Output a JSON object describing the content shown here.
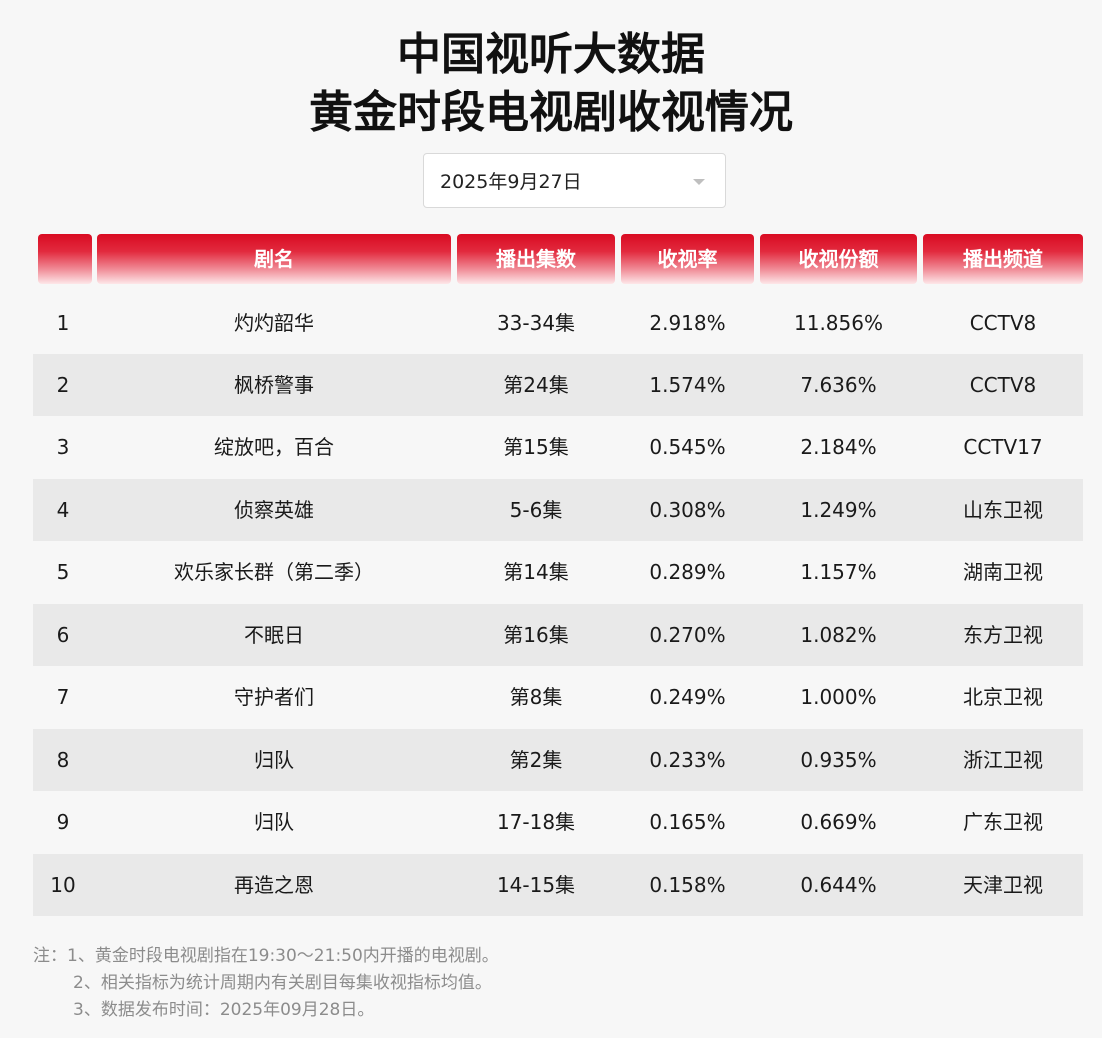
{
  "title": {
    "line1": "中国视听大数据",
    "line2": "黄金时段电视剧收视情况"
  },
  "date_selector": {
    "value": "2025年9月27日"
  },
  "table": {
    "headers": [
      "",
      "剧名",
      "播出集数",
      "收视率",
      "收视份额",
      "播出频道"
    ],
    "rows": [
      {
        "rank": "1",
        "name": "灼灼韶华",
        "episodes": "33-34集",
        "rating": "2.918%",
        "share": "11.856%",
        "channel": "CCTV8"
      },
      {
        "rank": "2",
        "name": "枫桥警事",
        "episodes": "第24集",
        "rating": "1.574%",
        "share": "7.636%",
        "channel": "CCTV8"
      },
      {
        "rank": "3",
        "name": "绽放吧，百合",
        "episodes": "第15集",
        "rating": "0.545%",
        "share": "2.184%",
        "channel": "CCTV17"
      },
      {
        "rank": "4",
        "name": "侦察英雄",
        "episodes": "5-6集",
        "rating": "0.308%",
        "share": "1.249%",
        "channel": "山东卫视"
      },
      {
        "rank": "5",
        "name": "欢乐家长群（第二季）",
        "episodes": "第14集",
        "rating": "0.289%",
        "share": "1.157%",
        "channel": "湖南卫视"
      },
      {
        "rank": "6",
        "name": "不眠日",
        "episodes": "第16集",
        "rating": "0.270%",
        "share": "1.082%",
        "channel": "东方卫视"
      },
      {
        "rank": "7",
        "name": "守护者们",
        "episodes": "第8集",
        "rating": "0.249%",
        "share": "1.000%",
        "channel": "北京卫视"
      },
      {
        "rank": "8",
        "name": "归队",
        "episodes": "第2集",
        "rating": "0.233%",
        "share": "0.935%",
        "channel": "浙江卫视"
      },
      {
        "rank": "9",
        "name": "归队",
        "episodes": "17-18集",
        "rating": "0.165%",
        "share": "0.669%",
        "channel": "广东卫视"
      },
      {
        "rank": "10",
        "name": "再造之恩",
        "episodes": "14-15集",
        "rating": "0.158%",
        "share": "0.644%",
        "channel": "天津卫视"
      }
    ]
  },
  "notes": [
    "注：1、黄金时段电视剧指在19:30～21:50内开播的电视剧。",
    "2、相关指标为统计周期内有关剧目每集收视指标均值。",
    "3、数据发布时间：2025年09月28日。"
  ],
  "colors": {
    "header_red": "#d90b22",
    "row_alt": "#e9e9e9",
    "background": "#f7f7f7"
  }
}
